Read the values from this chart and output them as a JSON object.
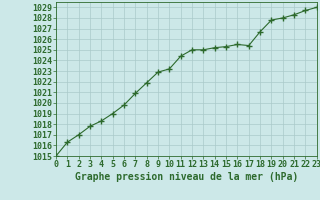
{
  "x": [
    0,
    1,
    2,
    3,
    4,
    5,
    6,
    7,
    8,
    9,
    10,
    11,
    12,
    13,
    14,
    15,
    16,
    17,
    18,
    19,
    20,
    21,
    22,
    23
  ],
  "y": [
    1015.0,
    1016.3,
    1017.0,
    1017.8,
    1018.3,
    1019.0,
    1019.8,
    1020.9,
    1021.9,
    1022.9,
    1023.2,
    1024.4,
    1025.0,
    1025.0,
    1025.2,
    1025.3,
    1025.5,
    1025.4,
    1026.7,
    1027.8,
    1028.0,
    1028.3,
    1028.7,
    1029.0
  ],
  "line_color": "#2d6a2d",
  "marker": "+",
  "marker_size": 4,
  "bg_color": "#cce8e8",
  "grid_color": "#aacaca",
  "xlabel": "Graphe pression niveau de la mer (hPa)",
  "xlabel_fontsize": 7,
  "ylabel_ticks": [
    1015,
    1016,
    1017,
    1018,
    1019,
    1020,
    1021,
    1022,
    1023,
    1024,
    1025,
    1026,
    1027,
    1028,
    1029
  ],
  "xlim": [
    0,
    23
  ],
  "ylim": [
    1015.0,
    1029.5
  ],
  "tick_fontsize": 6,
  "label_color": "#2d6a2d",
  "spine_color": "#2d6a2d"
}
